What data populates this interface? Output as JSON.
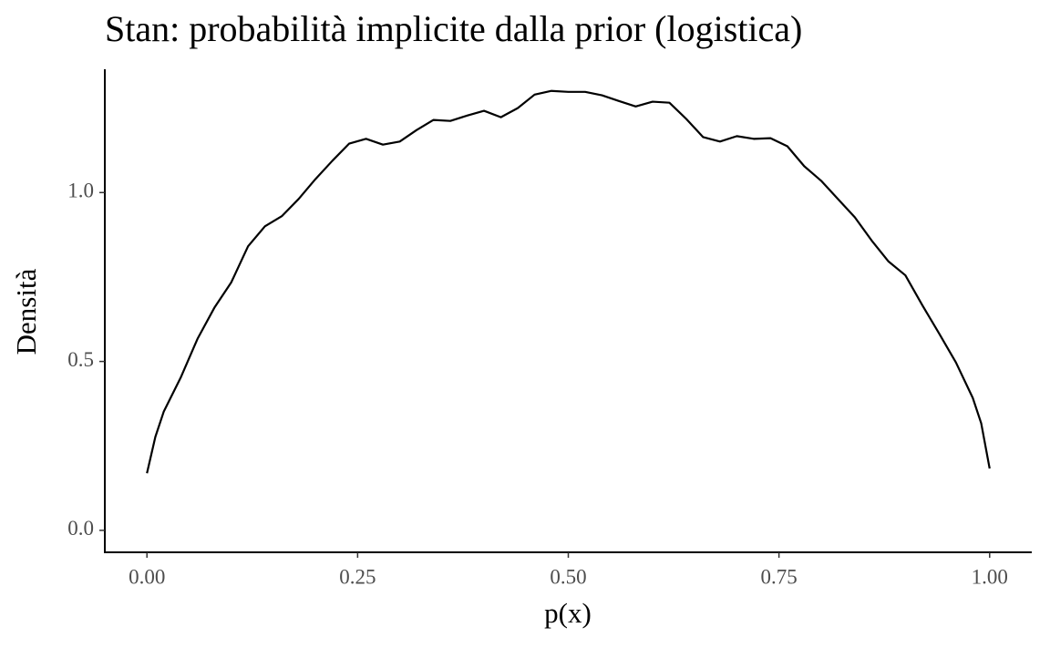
{
  "chart_data": {
    "type": "line",
    "title": "Stan: probabilità implicite dalla prior (logistica)",
    "x_label": "p(x)",
    "y_label": "Densità",
    "x": [
      0,
      0.01,
      0.02,
      0.04,
      0.06,
      0.08,
      0.1,
      0.12,
      0.14,
      0.16,
      0.18,
      0.2,
      0.22,
      0.24,
      0.26,
      0.28,
      0.3,
      0.32,
      0.34,
      0.36,
      0.38,
      0.4,
      0.42,
      0.44,
      0.46,
      0.48,
      0.5,
      0.52,
      0.54,
      0.56,
      0.58,
      0.6,
      0.62,
      0.64,
      0.66,
      0.68,
      0.7,
      0.72,
      0.74,
      0.76,
      0.78,
      0.8,
      0.82,
      0.84,
      0.86,
      0.88,
      0.9,
      0.92,
      0.94,
      0.96,
      0.98,
      0.99,
      1
    ],
    "values": [
      0.169,
      0.277,
      0.352,
      0.452,
      0.567,
      0.659,
      0.734,
      0.841,
      0.9,
      0.93,
      0.981,
      1.04,
      1.094,
      1.145,
      1.159,
      1.142,
      1.151,
      1.185,
      1.215,
      1.212,
      1.228,
      1.242,
      1.223,
      1.25,
      1.29,
      1.301,
      1.298,
      1.298,
      1.288,
      1.271,
      1.255,
      1.269,
      1.266,
      1.218,
      1.164,
      1.151,
      1.167,
      1.159,
      1.161,
      1.137,
      1.078,
      1.035,
      0.981,
      0.927,
      0.858,
      0.796,
      0.755,
      0.667,
      0.583,
      0.497,
      0.392,
      0.317,
      0.183
    ],
    "color": "#000000",
    "xlim": [
      -0.05,
      1.05
    ],
    "ylim": [
      -0.065,
      1.365
    ],
    "xticks": [
      {
        "value": 0,
        "label": "0.00"
      },
      {
        "value": 0.25,
        "label": "0.25"
      },
      {
        "value": 0.5,
        "label": "0.50"
      },
      {
        "value": 0.75,
        "label": "0.75"
      },
      {
        "value": 1,
        "label": "1.00"
      }
    ],
    "yticks": [
      {
        "value": 0,
        "label": "0.0"
      },
      {
        "value": 0.5,
        "label": "0.5"
      },
      {
        "value": 1,
        "label": "1.0"
      }
    ],
    "grid": false
  }
}
